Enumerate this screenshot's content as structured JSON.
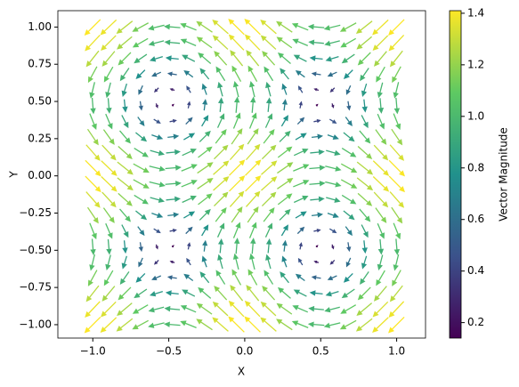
{
  "chart_data": {
    "type": "quiver",
    "xlabel": "X",
    "ylabel": "Y",
    "colorbar_label": "Vector Magnitude",
    "colormap": [
      "#440154",
      "#3b528b",
      "#21918c",
      "#5ec962",
      "#fde725"
    ],
    "clim": [
      0.14,
      1.41
    ],
    "cticks": [
      {
        "value": 0.2,
        "label": "0.2"
      },
      {
        "value": 0.4,
        "label": "0.4"
      },
      {
        "value": 0.6,
        "label": "0.6"
      },
      {
        "value": 0.8,
        "label": "0.8"
      },
      {
        "value": 1.0,
        "label": "1.0"
      },
      {
        "value": 1.2,
        "label": "1.2"
      },
      {
        "value": 1.4,
        "label": "1.4"
      }
    ],
    "xlim": [
      -1.23,
      1.19
    ],
    "ylim": [
      -1.09,
      1.11
    ],
    "xticks": [
      {
        "value": -1,
        "label": "−1.0"
      },
      {
        "value": -0.5,
        "label": "−0.5"
      },
      {
        "value": 0,
        "label": "0.0"
      },
      {
        "value": 0.5,
        "label": "0.5"
      },
      {
        "value": 1,
        "label": "1.0"
      }
    ],
    "yticks": [
      {
        "value": -1,
        "label": "−1.00"
      },
      {
        "value": -0.75,
        "label": "−0.75"
      },
      {
        "value": -0.5,
        "label": "−0.50"
      },
      {
        "value": -0.25,
        "label": "−0.25"
      },
      {
        "value": 0,
        "label": "0.00"
      },
      {
        "value": 0.25,
        "label": "0.25"
      },
      {
        "value": 0.5,
        "label": "0.50"
      },
      {
        "value": 0.75,
        "label": "0.75"
      },
      {
        "value": 1,
        "label": "1.00"
      }
    ],
    "x": [
      -1,
      -0.895,
      -0.789,
      -0.684,
      -0.579,
      -0.474,
      -0.368,
      -0.263,
      -0.158,
      -0.053,
      0.053,
      0.158,
      0.263,
      0.368,
      0.474,
      0.579,
      0.684,
      0.789,
      0.895,
      1
    ],
    "y": [
      -1,
      -0.895,
      -0.789,
      -0.684,
      -0.579,
      -0.474,
      -0.368,
      -0.263,
      -0.158,
      -0.053,
      0.053,
      0.158,
      0.263,
      0.368,
      0.474,
      0.579,
      0.684,
      0.789,
      0.895,
      1
    ],
    "u": [
      [
        -1,
        -1,
        -1,
        -1,
        -1,
        -1,
        -1,
        -1,
        -1,
        -1,
        -1,
        -1,
        -1,
        -1,
        -1,
        -1,
        -1,
        -1,
        -1,
        -1
      ],
      [
        -0.946,
        -0.946,
        -0.946,
        -0.946,
        -0.946,
        -0.946,
        -0.946,
        -0.946,
        -0.946,
        -0.946,
        -0.946,
        -0.946,
        -0.946,
        -0.946,
        -0.946,
        -0.946,
        -0.946,
        -0.946,
        -0.946,
        -0.946
      ],
      [
        -0.789,
        -0.789,
        -0.789,
        -0.789,
        -0.789,
        -0.789,
        -0.789,
        -0.789,
        -0.789,
        -0.789,
        -0.789,
        -0.789,
        -0.789,
        -0.789,
        -0.789,
        -0.789,
        -0.789,
        -0.789,
        -0.789,
        -0.789
      ],
      [
        -0.547,
        -0.547,
        -0.547,
        -0.547,
        -0.547,
        -0.547,
        -0.547,
        -0.547,
        -0.547,
        -0.547,
        -0.547,
        -0.547,
        -0.547,
        -0.547,
        -0.547,
        -0.547,
        -0.547,
        -0.547,
        -0.547,
        -0.547
      ],
      [
        -0.245,
        -0.245,
        -0.245,
        -0.245,
        -0.245,
        -0.245,
        -0.245,
        -0.245,
        -0.245,
        -0.245,
        -0.245,
        -0.245,
        -0.245,
        -0.245,
        -0.245,
        -0.245,
        -0.245,
        -0.245,
        -0.245,
        -0.245
      ],
      [
        0.083,
        0.083,
        0.083,
        0.083,
        0.083,
        0.083,
        0.083,
        0.083,
        0.083,
        0.083,
        0.083,
        0.083,
        0.083,
        0.083,
        0.083,
        0.083,
        0.083,
        0.083,
        0.083,
        0.083
      ],
      [
        0.402,
        0.402,
        0.402,
        0.402,
        0.402,
        0.402,
        0.402,
        0.402,
        0.402,
        0.402,
        0.402,
        0.402,
        0.402,
        0.402,
        0.402,
        0.402,
        0.402,
        0.402,
        0.402,
        0.402
      ],
      [
        0.677,
        0.677,
        0.677,
        0.677,
        0.677,
        0.677,
        0.677,
        0.677,
        0.677,
        0.677,
        0.677,
        0.677,
        0.677,
        0.677,
        0.677,
        0.677,
        0.677,
        0.677,
        0.677,
        0.677
      ],
      [
        0.879,
        0.879,
        0.879,
        0.879,
        0.879,
        0.879,
        0.879,
        0.879,
        0.879,
        0.879,
        0.879,
        0.879,
        0.879,
        0.879,
        0.879,
        0.879,
        0.879,
        0.879,
        0.879,
        0.879
      ],
      [
        0.986,
        0.986,
        0.986,
        0.986,
        0.986,
        0.986,
        0.986,
        0.986,
        0.986,
        0.986,
        0.986,
        0.986,
        0.986,
        0.986,
        0.986,
        0.986,
        0.986,
        0.986,
        0.986,
        0.986
      ],
      [
        0.986,
        0.986,
        0.986,
        0.986,
        0.986,
        0.986,
        0.986,
        0.986,
        0.986,
        0.986,
        0.986,
        0.986,
        0.986,
        0.986,
        0.986,
        0.986,
        0.986,
        0.986,
        0.986,
        0.986
      ],
      [
        0.879,
        0.879,
        0.879,
        0.879,
        0.879,
        0.879,
        0.879,
        0.879,
        0.879,
        0.879,
        0.879,
        0.879,
        0.879,
        0.879,
        0.879,
        0.879,
        0.879,
        0.879,
        0.879,
        0.879
      ],
      [
        0.677,
        0.677,
        0.677,
        0.677,
        0.677,
        0.677,
        0.677,
        0.677,
        0.677,
        0.677,
        0.677,
        0.677,
        0.677,
        0.677,
        0.677,
        0.677,
        0.677,
        0.677,
        0.677,
        0.677
      ],
      [
        0.402,
        0.402,
        0.402,
        0.402,
        0.402,
        0.402,
        0.402,
        0.402,
        0.402,
        0.402,
        0.402,
        0.402,
        0.402,
        0.402,
        0.402,
        0.402,
        0.402,
        0.402,
        0.402,
        0.402
      ],
      [
        0.083,
        0.083,
        0.083,
        0.083,
        0.083,
        0.083,
        0.083,
        0.083,
        0.083,
        0.083,
        0.083,
        0.083,
        0.083,
        0.083,
        0.083,
        0.083,
        0.083,
        0.083,
        0.083,
        0.083
      ],
      [
        -0.245,
        -0.245,
        -0.245,
        -0.245,
        -0.245,
        -0.245,
        -0.245,
        -0.245,
        -0.245,
        -0.245,
        -0.245,
        -0.245,
        -0.245,
        -0.245,
        -0.245,
        -0.245,
        -0.245,
        -0.245,
        -0.245,
        -0.245
      ],
      [
        -0.547,
        -0.547,
        -0.547,
        -0.547,
        -0.547,
        -0.547,
        -0.547,
        -0.547,
        -0.547,
        -0.547,
        -0.547,
        -0.547,
        -0.547,
        -0.547,
        -0.547,
        -0.547,
        -0.547,
        -0.547,
        -0.547,
        -0.547
      ],
      [
        -0.789,
        -0.789,
        -0.789,
        -0.789,
        -0.789,
        -0.789,
        -0.789,
        -0.789,
        -0.789,
        -0.789,
        -0.789,
        -0.789,
        -0.789,
        -0.789,
        -0.789,
        -0.789,
        -0.789,
        -0.789,
        -0.789,
        -0.789
      ],
      [
        -0.946,
        -0.946,
        -0.946,
        -0.946,
        -0.946,
        -0.946,
        -0.946,
        -0.946,
        -0.946,
        -0.946,
        -0.946,
        -0.946,
        -0.946,
        -0.946,
        -0.946,
        -0.946,
        -0.946,
        -0.946,
        -0.946,
        -0.946
      ],
      [
        -1,
        -1,
        -1,
        -1,
        -1,
        -1,
        -1,
        -1,
        -1,
        -1,
        -1,
        -1,
        -1,
        -1,
        -1,
        -1,
        -1,
        -1,
        -1,
        -1
      ]
    ],
    "v": [
      [
        -1,
        -0.946,
        -0.789,
        -0.547,
        -0.245,
        0.083,
        0.402,
        0.677,
        0.879,
        0.986,
        0.986,
        0.879,
        0.677,
        0.402,
        0.083,
        -0.245,
        -0.547,
        -0.789,
        -0.946,
        -1
      ],
      [
        -1,
        -0.946,
        -0.789,
        -0.547,
        -0.245,
        0.083,
        0.402,
        0.677,
        0.879,
        0.986,
        0.986,
        0.879,
        0.677,
        0.402,
        0.083,
        -0.245,
        -0.547,
        -0.789,
        -0.946,
        -1
      ],
      [
        -1,
        -0.946,
        -0.789,
        -0.547,
        -0.245,
        0.083,
        0.402,
        0.677,
        0.879,
        0.986,
        0.986,
        0.879,
        0.677,
        0.402,
        0.083,
        -0.245,
        -0.547,
        -0.789,
        -0.946,
        -1
      ],
      [
        -1,
        -0.946,
        -0.789,
        -0.547,
        -0.245,
        0.083,
        0.402,
        0.677,
        0.879,
        0.986,
        0.986,
        0.879,
        0.677,
        0.402,
        0.083,
        -0.245,
        -0.547,
        -0.789,
        -0.946,
        -1
      ],
      [
        -1,
        -0.946,
        -0.789,
        -0.547,
        -0.245,
        0.083,
        0.402,
        0.677,
        0.879,
        0.986,
        0.986,
        0.879,
        0.677,
        0.402,
        0.083,
        -0.245,
        -0.547,
        -0.789,
        -0.946,
        -1
      ],
      [
        -1,
        -0.946,
        -0.789,
        -0.547,
        -0.245,
        0.083,
        0.402,
        0.677,
        0.879,
        0.986,
        0.986,
        0.879,
        0.677,
        0.402,
        0.083,
        -0.245,
        -0.547,
        -0.789,
        -0.946,
        -1
      ],
      [
        -1,
        -0.946,
        -0.789,
        -0.547,
        -0.245,
        0.083,
        0.402,
        0.677,
        0.879,
        0.986,
        0.986,
        0.879,
        0.677,
        0.402,
        0.083,
        -0.245,
        -0.547,
        -0.789,
        -0.946,
        -1
      ],
      [
        -1,
        -0.946,
        -0.789,
        -0.547,
        -0.245,
        0.083,
        0.402,
        0.677,
        0.879,
        0.986,
        0.986,
        0.879,
        0.677,
        0.402,
        0.083,
        -0.245,
        -0.547,
        -0.789,
        -0.946,
        -1
      ],
      [
        -1,
        -0.946,
        -0.789,
        -0.547,
        -0.245,
        0.083,
        0.402,
        0.677,
        0.879,
        0.986,
        0.986,
        0.879,
        0.677,
        0.402,
        0.083,
        -0.245,
        -0.547,
        -0.789,
        -0.946,
        -1
      ],
      [
        -1,
        -0.946,
        -0.789,
        -0.547,
        -0.245,
        0.083,
        0.402,
        0.677,
        0.879,
        0.986,
        0.986,
        0.879,
        0.677,
        0.402,
        0.083,
        -0.245,
        -0.547,
        -0.789,
        -0.946,
        -1
      ],
      [
        -1,
        -0.946,
        -0.789,
        -0.547,
        -0.245,
        0.083,
        0.402,
        0.677,
        0.879,
        0.986,
        0.986,
        0.879,
        0.677,
        0.402,
        0.083,
        -0.245,
        -0.547,
        -0.789,
        -0.946,
        -1
      ],
      [
        -1,
        -0.946,
        -0.789,
        -0.547,
        -0.245,
        0.083,
        0.402,
        0.677,
        0.879,
        0.986,
        0.986,
        0.879,
        0.677,
        0.402,
        0.083,
        -0.245,
        -0.547,
        -0.789,
        -0.946,
        -1
      ],
      [
        -1,
        -0.946,
        -0.789,
        -0.547,
        -0.245,
        0.083,
        0.402,
        0.677,
        0.879,
        0.986,
        0.986,
        0.879,
        0.677,
        0.402,
        0.083,
        -0.245,
        -0.547,
        -0.789,
        -0.946,
        -1
      ],
      [
        -1,
        -0.946,
        -0.789,
        -0.547,
        -0.245,
        0.083,
        0.402,
        0.677,
        0.879,
        0.986,
        0.986,
        0.879,
        0.677,
        0.402,
        0.083,
        -0.245,
        -0.547,
        -0.789,
        -0.946,
        -1
      ],
      [
        -1,
        -0.946,
        -0.789,
        -0.547,
        -0.245,
        0.083,
        0.402,
        0.677,
        0.879,
        0.986,
        0.986,
        0.879,
        0.677,
        0.402,
        0.083,
        -0.245,
        -0.547,
        -0.789,
        -0.946,
        -1
      ],
      [
        -1,
        -0.946,
        -0.789,
        -0.547,
        -0.245,
        0.083,
        0.402,
        0.677,
        0.879,
        0.986,
        0.986,
        0.879,
        0.677,
        0.402,
        0.083,
        -0.245,
        -0.547,
        -0.789,
        -0.946,
        -1
      ],
      [
        -1,
        -0.946,
        -0.789,
        -0.547,
        -0.245,
        0.083,
        0.402,
        0.677,
        0.879,
        0.986,
        0.986,
        0.879,
        0.677,
        0.402,
        0.083,
        -0.245,
        -0.547,
        -0.789,
        -0.946,
        -1
      ],
      [
        -1,
        -0.946,
        -0.789,
        -0.547,
        -0.245,
        0.083,
        0.402,
        0.677,
        0.879,
        0.986,
        0.986,
        0.879,
        0.677,
        0.402,
        0.083,
        -0.245,
        -0.547,
        -0.789,
        -0.946,
        -1
      ],
      [
        -1,
        -0.946,
        -0.789,
        -0.547,
        -0.245,
        0.083,
        0.402,
        0.677,
        0.879,
        0.986,
        0.986,
        0.879,
        0.677,
        0.402,
        0.083,
        -0.245,
        -0.547,
        -0.789,
        -0.946,
        -1
      ],
      [
        -1,
        -0.946,
        -0.789,
        -0.547,
        -0.245,
        0.083,
        0.402,
        0.677,
        0.879,
        0.986,
        0.986,
        0.879,
        0.677,
        0.402,
        0.083,
        -0.245,
        -0.547,
        -0.789,
        -0.946,
        -1
      ]
    ]
  }
}
